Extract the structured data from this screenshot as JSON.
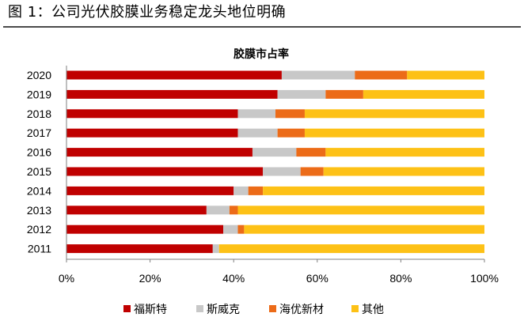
{
  "figure": {
    "caption": "图 1：公司光伏胶膜业务稳定龙头地位明确"
  },
  "chart_data": {
    "type": "bar",
    "orientation": "horizontal",
    "stacked": "percent",
    "title": "胶膜市占率",
    "categories": [
      "2020",
      "2019",
      "2018",
      "2017",
      "2016",
      "2015",
      "2014",
      "2013",
      "2012",
      "2011"
    ],
    "series": [
      {
        "name": "福斯特",
        "color": "#c00000",
        "values": [
          51.5,
          50.5,
          41,
          41,
          44.5,
          47,
          40,
          33.5,
          37.5,
          35
        ]
      },
      {
        "name": "斯威克",
        "color": "#c8c8c8",
        "values": [
          17.5,
          11.5,
          9,
          9.5,
          10.5,
          9,
          3.5,
          5.5,
          3.5,
          1.5
        ]
      },
      {
        "name": "海优新材",
        "color": "#ec6b18",
        "values": [
          12.5,
          9,
          7,
          6.5,
          7,
          5.5,
          3.5,
          2,
          1.5,
          0
        ]
      },
      {
        "name": "其他",
        "color": "#fdc116",
        "values": [
          18.5,
          29,
          43,
          43,
          38,
          38.5,
          53,
          59,
          57.5,
          63.5
        ]
      }
    ],
    "xlim": [
      0,
      100
    ],
    "xticks": [
      "0%",
      "20%",
      "40%",
      "60%",
      "80%",
      "100%"
    ],
    "grid": false,
    "legend_position": "bottom"
  }
}
